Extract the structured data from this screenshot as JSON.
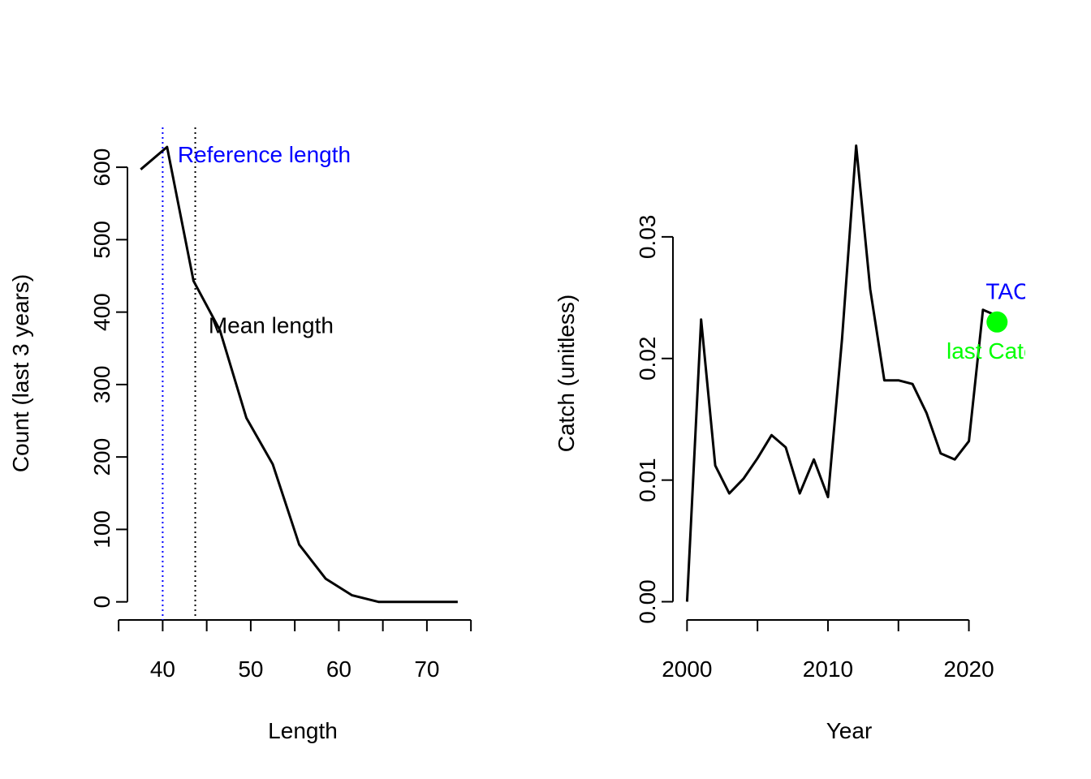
{
  "chart_data": [
    {
      "type": "line",
      "title": "",
      "xlabel": "Length",
      "ylabel": "Count (last 3 years)",
      "xlim": [
        36,
        76
      ],
      "ylim": [
        -25,
        655
      ],
      "xticks": [
        40,
        50,
        60,
        70
      ],
      "yticks": [
        0,
        100,
        200,
        300,
        400,
        500,
        600
      ],
      "grid": false,
      "series": [
        {
          "x": [
            37.5,
            40.5,
            43.5,
            46.5,
            49.5,
            52.5,
            55.5,
            58.5,
            61.5,
            64.5,
            67.5,
            70.5,
            73.5
          ],
          "values": [
            597,
            628,
            443,
            375,
            254,
            190,
            79,
            32,
            9,
            0,
            0,
            0,
            0
          ]
        }
      ],
      "vlines": [
        {
          "name": "reference",
          "x": 40,
          "color": "#0000ff",
          "style": "dotted"
        },
        {
          "name": "mean",
          "x": 43.7,
          "color": "#000000",
          "style": "dotted"
        }
      ],
      "annotations": [
        {
          "text": "Reference length",
          "x": 41.7,
          "y": 607,
          "color": "#0000ff",
          "anchor": "start"
        },
        {
          "text": "Mean length",
          "x": 45.2,
          "y": 371,
          "color": "#000000",
          "anchor": "start"
        }
      ]
    },
    {
      "type": "line",
      "title": "",
      "xlabel": "Year",
      "ylabel": "Catch (unitless)",
      "xlim": [
        1999,
        2024
      ],
      "ylim": [
        -0.0015,
        0.039
      ],
      "xticks": [
        2000,
        2010,
        2020
      ],
      "minor_xticks": [
        2005,
        2015
      ],
      "yticks": [
        0.0,
        0.01,
        0.02,
        0.03
      ],
      "ytick_labels": [
        "0.00",
        "0.01",
        "0.02",
        "0.03"
      ],
      "grid": false,
      "series": [
        {
          "x": [
            2000,
            2001,
            2002,
            2003,
            2004,
            2005,
            2006,
            2007,
            2008,
            2009,
            2010,
            2011,
            2012,
            2013,
            2014,
            2015,
            2016,
            2017,
            2018,
            2019,
            2020,
            2021,
            2022
          ],
          "values": [
            0.0,
            0.0232,
            0.0112,
            0.0089,
            0.0101,
            0.0118,
            0.0137,
            0.0127,
            0.0089,
            0.0117,
            0.0086,
            0.0216,
            0.0375,
            0.0257,
            0.0182,
            0.0182,
            0.0179,
            0.0155,
            0.0122,
            0.0117,
            0.0132,
            0.024,
            0.0235
          ]
        }
      ],
      "points": [
        {
          "name": "last-catch",
          "x": 2022,
          "y": 0.023,
          "color": "#00ff00"
        }
      ],
      "annotations": [
        {
          "text": "TAC",
          "x": 2021.2,
          "y": 0.0249,
          "color": "#0000ff",
          "anchor": "start"
        },
        {
          "text": "last Catch",
          "x": 2022,
          "y": 0.02,
          "color": "#00ff00",
          "anchor": "middle"
        }
      ]
    }
  ]
}
